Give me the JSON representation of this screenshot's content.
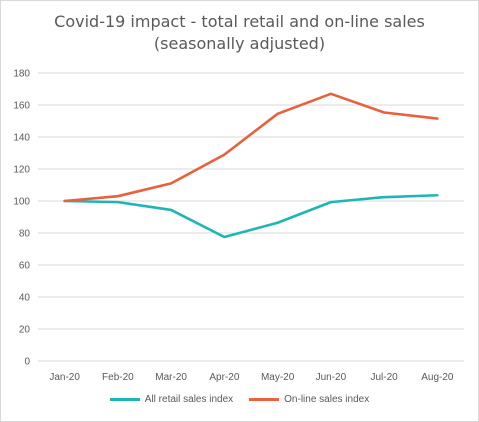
{
  "chart_data": {
    "type": "line",
    "title": "Covid-19 impact - total retail and on-line sales",
    "subtitle": "(seasonally adjusted)",
    "categories": [
      "Jan-20",
      "Feb-20",
      "Mar-20",
      "Apr-20",
      "May-20",
      "Jun-20",
      "Jul-20",
      "Aug-20"
    ],
    "ylim": [
      0,
      180
    ],
    "yticks": [
      0,
      20,
      40,
      60,
      80,
      100,
      120,
      140,
      160,
      180
    ],
    "grid": true,
    "legend_position": "bottom",
    "series": [
      {
        "name": "All retail sales index",
        "color": "#1fb5b5",
        "values": [
          100,
          99.3,
          94.4,
          77.5,
          86.4,
          99.3,
          102.4,
          103.6
        ]
      },
      {
        "name": "On-line sales  index",
        "color": "#e8603c",
        "values": [
          100,
          103,
          111,
          129,
          154.5,
          167,
          155.3,
          151.5
        ]
      }
    ]
  }
}
